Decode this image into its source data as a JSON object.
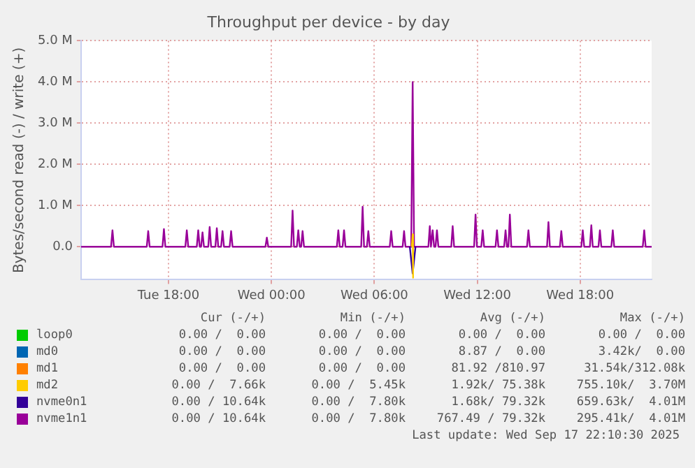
{
  "chart_data": {
    "type": "line",
    "title": "Throughput per device - by day",
    "ylabel": "Bytes/second read (-) / write (+)",
    "xlim": [
      "2025-09-16T12:54",
      "2025-09-17T22:10"
    ],
    "xticks": [
      {
        "value": "2025-09-16T18:00",
        "label": "Tue 18:00"
      },
      {
        "value": "2025-09-17T00:00",
        "label": "Wed 00:00"
      },
      {
        "value": "2025-09-17T06:00",
        "label": "Wed 06:00"
      },
      {
        "value": "2025-09-17T12:00",
        "label": "Wed 12:00"
      },
      {
        "value": "2025-09-17T18:00",
        "label": "Wed 18:00"
      }
    ],
    "ylim": [
      -0.8,
      5.0
    ],
    "yticks": [
      {
        "value": 0,
        "label": "0.0"
      },
      {
        "value": 1,
        "label": "1.0 M"
      },
      {
        "value": 2,
        "label": "2.0 M"
      },
      {
        "value": 3,
        "label": "3.0 M"
      },
      {
        "value": 4,
        "label": "4.0 M"
      },
      {
        "value": 5,
        "label": "5.0 M"
      }
    ],
    "grid": true,
    "legend": "bottom",
    "series": [
      {
        "name": "loop0",
        "color": "#00cc00"
      },
      {
        "name": "md0",
        "color": "#0066b3"
      },
      {
        "name": "md1",
        "color": "#ff8000"
      },
      {
        "name": "md2",
        "color": "#ffcc00",
        "x": [
          "2025-09-17T08:11",
          "2025-09-17T08:14",
          "2025-09-17T08:14",
          "2025-09-17T08:17"
        ],
        "values": [
          0,
          0.3,
          -0.75,
          0
        ]
      },
      {
        "name": "nvme0n1",
        "color": "#330099",
        "x": [
          "2025-09-17T08:04",
          "2025-09-17T08:14",
          "2025-09-17T08:24"
        ],
        "values": [
          0,
          -0.65,
          0
        ]
      },
      {
        "name": "nvme1n1",
        "color": "#990099",
        "x": [
          "2025-09-16T12:54",
          "2025-09-16T14:39",
          "2025-09-16T14:44",
          "2025-09-16T14:49",
          "2025-09-16T16:44",
          "2025-09-16T16:49",
          "2025-09-16T16:54",
          "2025-09-16T17:39",
          "2025-09-16T17:44",
          "2025-09-16T17:49",
          "2025-09-16T18:59",
          "2025-09-16T19:04",
          "2025-09-16T19:09",
          "2025-09-16T19:39",
          "2025-09-16T19:44",
          "2025-09-16T19:49",
          "2025-09-16T19:54",
          "2025-09-16T19:59",
          "2025-09-16T20:04",
          "2025-09-16T20:19",
          "2025-09-16T20:24",
          "2025-09-16T20:29",
          "2025-09-16T20:44",
          "2025-09-16T20:49",
          "2025-09-16T20:54",
          "2025-09-16T21:04",
          "2025-09-16T21:09",
          "2025-09-16T21:14",
          "2025-09-16T21:34",
          "2025-09-16T21:39",
          "2025-09-16T21:44",
          "2025-09-16T23:39",
          "2025-09-16T23:44",
          "2025-09-16T23:49",
          "2025-09-17T01:09",
          "2025-09-17T01:14",
          "2025-09-17T01:19",
          "2025-09-17T01:29",
          "2025-09-17T01:34",
          "2025-09-17T01:39",
          "2025-09-17T01:44",
          "2025-09-17T01:49",
          "2025-09-17T01:54",
          "2025-09-17T03:49",
          "2025-09-17T03:54",
          "2025-09-17T03:59",
          "2025-09-17T04:09",
          "2025-09-17T04:14",
          "2025-09-17T04:19",
          "2025-09-17T05:14",
          "2025-09-17T05:19",
          "2025-09-17T05:24",
          "2025-09-17T05:34",
          "2025-09-17T05:39",
          "2025-09-17T05:44",
          "2025-09-17T06:54",
          "2025-09-17T06:59",
          "2025-09-17T07:04",
          "2025-09-17T07:39",
          "2025-09-17T07:44",
          "2025-09-17T07:49",
          "2025-09-17T08:09",
          "2025-09-17T08:14",
          "2025-09-17T08:19",
          "2025-09-17T09:09",
          "2025-09-17T09:14",
          "2025-09-17T09:18",
          "2025-09-17T09:20",
          "2025-09-17T09:24",
          "2025-09-17T09:29",
          "2025-09-17T09:34",
          "2025-09-17T09:39",
          "2025-09-17T09:44",
          "2025-09-17T10:29",
          "2025-09-17T10:34",
          "2025-09-17T10:39",
          "2025-09-17T11:49",
          "2025-09-17T11:54",
          "2025-09-17T11:59",
          "2025-09-17T12:14",
          "2025-09-17T12:19",
          "2025-09-17T12:24",
          "2025-09-17T13:04",
          "2025-09-17T13:09",
          "2025-09-17T13:14",
          "2025-09-17T13:34",
          "2025-09-17T13:39",
          "2025-09-17T13:44",
          "2025-09-17T13:49",
          "2025-09-17T13:54",
          "2025-09-17T13:59",
          "2025-09-17T14:54",
          "2025-09-17T14:59",
          "2025-09-17T15:04",
          "2025-09-17T16:04",
          "2025-09-17T16:09",
          "2025-09-17T16:14",
          "2025-09-17T16:49",
          "2025-09-17T16:54",
          "2025-09-17T16:59",
          "2025-09-17T18:04",
          "2025-09-17T18:09",
          "2025-09-17T18:14",
          "2025-09-17T18:34",
          "2025-09-17T18:39",
          "2025-09-17T18:44",
          "2025-09-17T19:04",
          "2025-09-17T19:09",
          "2025-09-17T19:14",
          "2025-09-17T19:49",
          "2025-09-17T19:54",
          "2025-09-17T19:59",
          "2025-09-17T21:39",
          "2025-09-17T21:44",
          "2025-09-17T21:49",
          "2025-09-17T22:10"
        ],
        "values": [
          0,
          0,
          0.4,
          0,
          0,
          0.38,
          0,
          0,
          0.43,
          0,
          0,
          0.4,
          0,
          0,
          0.4,
          0,
          0,
          0.35,
          0,
          0,
          0.48,
          0,
          0,
          0.45,
          0,
          0,
          0.38,
          0,
          0,
          0.38,
          0,
          0,
          0.22,
          0,
          0,
          0.88,
          0,
          0,
          0.4,
          0,
          0,
          0.38,
          0,
          0,
          0.4,
          0,
          0,
          0.4,
          0,
          0,
          0.97,
          0,
          0,
          0.38,
          0,
          0,
          0.38,
          0,
          0,
          0.38,
          0,
          0,
          4.0,
          0,
          0,
          0.5,
          0,
          0,
          0.4,
          0,
          0,
          0.4,
          0,
          0,
          0.5,
          0,
          0,
          0.78,
          0,
          0,
          0.4,
          0,
          0,
          0.4,
          0,
          0,
          0.4,
          0,
          0,
          0.78,
          0,
          0,
          0.4,
          0,
          0,
          0.6,
          0,
          0,
          0.38,
          0,
          0,
          0.4,
          0,
          0,
          0.52,
          0,
          0,
          0.4,
          0,
          0,
          0.4,
          0,
          0,
          0.4,
          0,
          0
        ]
      }
    ],
    "annotations": [
      "Cur (-/+)",
      "Min (-/+)",
      "Avg (-/+)",
      "Max (-/+)",
      "0.00 /  0.00",
      "0.00 /  0.00",
      "0.00 /  0.00",
      "0.00 /  0.00",
      "0.00 /  0.00",
      "0.00 /  0.00",
      "8.87 /  0.00",
      "3.42k/  0.00",
      "0.00 /  0.00",
      "0.00 /  0.00",
      "81.92 /810.97",
      "31.54k/312.08k",
      "0.00 /  7.66k",
      "0.00 /  5.45k",
      "1.92k/ 75.38k",
      "755.10k/  3.70M",
      "0.00 / 10.64k",
      "0.00 /  7.80k",
      "1.68k/ 79.32k",
      "659.63k/  4.01M",
      "0.00 / 10.64k",
      "0.00 /  7.80k",
      "767.49 / 79.32k",
      "295.41k/  4.01M",
      "Last update: Wed Sep 17 22:10:30 2025"
    ]
  }
}
